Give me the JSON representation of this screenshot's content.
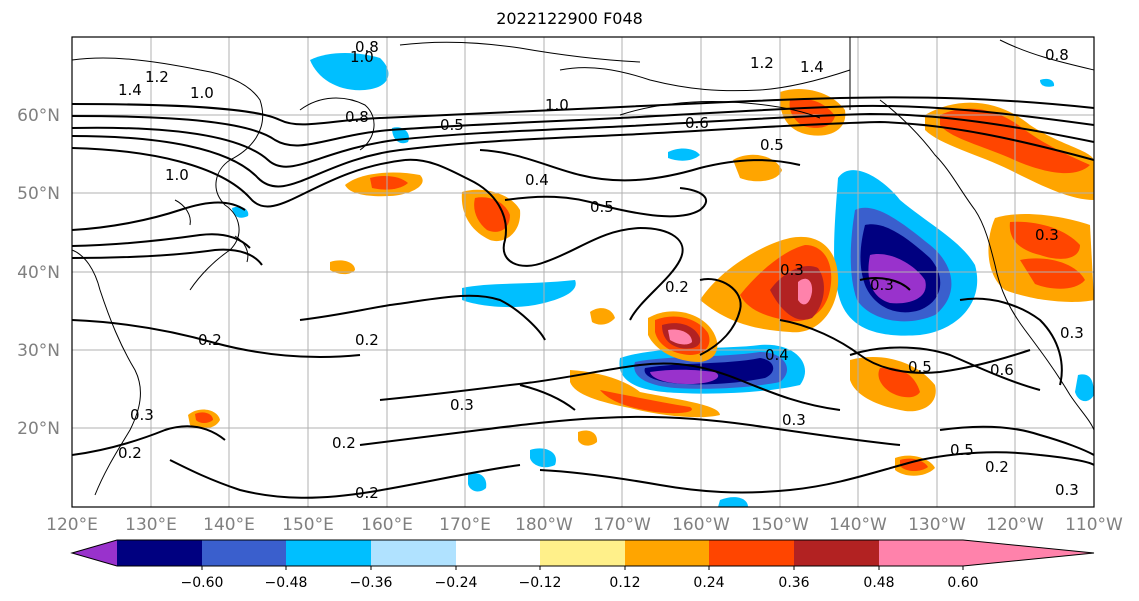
{
  "title": "2022122900 F048",
  "lat_labels": [
    "60°N",
    "50°N",
    "40°N",
    "30°N",
    "20°N"
  ],
  "lon_labels": [
    "120°E",
    "130°E",
    "140°E",
    "150°E",
    "160°E",
    "170°E",
    "180°W",
    "170°W",
    "160°W",
    "150°W",
    "140°W",
    "130°W",
    "120°W",
    "110°W"
  ],
  "colorbar": {
    "colors": [
      "#9932cc",
      "#000080",
      "#3a5fcd",
      "#00bfff",
      "#b0e2ff",
      "#ffffff",
      "#fff08a",
      "#ffa500",
      "#ff4500",
      "#b22222",
      "#ff82ab"
    ],
    "tick_labels": [
      "−0.60",
      "−0.48",
      "−0.36",
      "−0.24",
      "−0.12",
      "0.12",
      "0.24",
      "0.36",
      "0.48",
      "0.60"
    ]
  },
  "contour_labels": [
    "1.4",
    "1.2",
    "1.0",
    "0.8",
    "1.0",
    "1.2",
    "1.4",
    "1.0",
    "0.8",
    "0.6",
    "0.5",
    "1.0",
    "0.5",
    "0.4",
    "0.5",
    "0.2",
    "0.3",
    "0.3",
    "0.2",
    "0.2",
    "0.3",
    "0.4",
    "0.5",
    "0.3",
    "0.2",
    "0.3",
    "0.2",
    "0.6",
    "0.5",
    "0.3",
    "0.2",
    "0.2",
    "0.3",
    "0.8",
    "0.3"
  ]
}
